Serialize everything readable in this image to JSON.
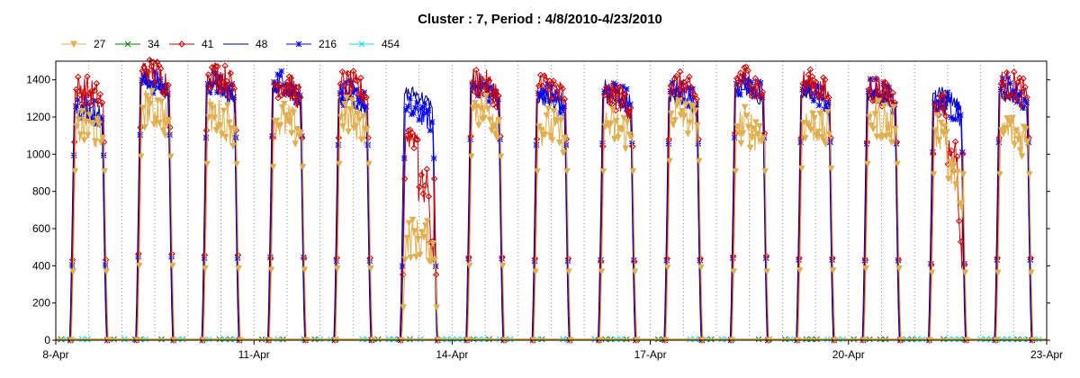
{
  "chart_data": {
    "type": "line",
    "title": "Cluster : 7, Period : 4/8/2010-4/23/2010",
    "xlabel": "",
    "ylabel": "",
    "ylim": [
      0,
      1500
    ],
    "xlim": [
      0,
      15
    ],
    "yticks": [
      "0",
      "200",
      "400",
      "600",
      "800",
      "1000",
      "1200",
      "1400"
    ],
    "xticks": [
      {
        "day": 0,
        "label": "8-Apr"
      },
      {
        "day": 3,
        "label": "11-Apr"
      },
      {
        "day": 6,
        "label": "14-Apr"
      },
      {
        "day": 9,
        "label": "17-Apr"
      },
      {
        "day": 12,
        "label": "20-Apr"
      },
      {
        "day": 15,
        "label": "23-Apr"
      }
    ],
    "grid": "dotted vertical lines at noon and midnight",
    "legend_placement": "top-left",
    "series": [
      {
        "name": "27",
        "color": "#E0B050",
        "marker": "triangle-down",
        "daily_peak": [
          1150,
          1250,
          1200,
          1180,
          1200,
          550,
          1250,
          1150,
          1150,
          1220,
          1150,
          1170,
          1200,
          1130,
          1130
        ],
        "dip": [
          null,
          null,
          null,
          null,
          null,
          null,
          null,
          null,
          null,
          null,
          null,
          null,
          null,
          [
            0.75,
            0.55
          ],
          null
        ]
      },
      {
        "name": "34",
        "color": "#008000",
        "marker": "x"
      },
      {
        "name": "41",
        "color": "#CC0000",
        "marker": "diamond",
        "daily_peak": [
          1350,
          1450,
          1430,
          1380,
          1380,
          1100,
          1390,
          1370,
          1320,
          1370,
          1410,
          1380,
          1350,
          1270,
          1380
        ],
        "dip": [
          null,
          null,
          null,
          null,
          null,
          [
            0.72,
            0.3
          ],
          null,
          null,
          null,
          null,
          null,
          null,
          null,
          [
            0.75,
            0.2
          ],
          null
        ]
      },
      {
        "name": "48",
        "color": "#000080",
        "marker": "none",
        "daily_peak": [
          1240,
          1390,
          1370,
          1360,
          1300,
          1330,
          1360,
          1300,
          1310,
          1310,
          1360,
          1320,
          1330,
          1330,
          1330
        ],
        "dip": [
          null,
          null,
          null,
          null,
          null,
          null,
          null,
          null,
          null,
          null,
          null,
          null,
          null,
          null,
          null
        ]
      },
      {
        "name": "216",
        "color": "#0000FF",
        "marker": "asterisk",
        "daily_peak": [
          1260,
          1400,
          1380,
          1390,
          1330,
          1240,
          1370,
          1330,
          1340,
          1340,
          1380,
          1350,
          1340,
          1280,
          1350
        ],
        "dip": [
          null,
          null,
          null,
          null,
          null,
          null,
          null,
          null,
          null,
          null,
          null,
          null,
          null,
          null,
          null
        ]
      },
      {
        "name": "454",
        "color": "#00E0E0",
        "marker": "x"
      }
    ]
  }
}
